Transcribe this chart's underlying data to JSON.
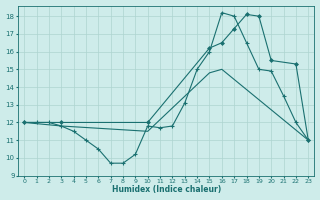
{
  "xlabel": "Humidex (Indice chaleur)",
  "xlim": [
    -0.5,
    23.5
  ],
  "ylim": [
    9,
    18.6
  ],
  "yticks": [
    9,
    10,
    11,
    12,
    13,
    14,
    15,
    16,
    17,
    18
  ],
  "xticks": [
    0,
    1,
    2,
    3,
    4,
    5,
    6,
    7,
    8,
    9,
    10,
    11,
    12,
    13,
    14,
    15,
    16,
    17,
    18,
    19,
    20,
    21,
    22,
    23
  ],
  "bg_color": "#ceecea",
  "grid_color": "#aed4d0",
  "line_color": "#1a7070",
  "line1_x": [
    0,
    1,
    2,
    3,
    4,
    5,
    6,
    7,
    8,
    9,
    10,
    11,
    12,
    13,
    14,
    15,
    16,
    17,
    18,
    19,
    20,
    21,
    22,
    23
  ],
  "line1_y": [
    12,
    12,
    12,
    11.8,
    11.5,
    11.0,
    10.5,
    9.7,
    9.7,
    10.2,
    11.8,
    11.7,
    11.8,
    13.1,
    15.0,
    16.0,
    18.2,
    18.0,
    16.5,
    15.0,
    14.9,
    13.5,
    12.0,
    11.0
  ],
  "line2_x": [
    0,
    3,
    10,
    15,
    16,
    17,
    18,
    19,
    20,
    22,
    23
  ],
  "line2_y": [
    12,
    12,
    12,
    16.2,
    16.5,
    17.3,
    18.1,
    18.0,
    15.5,
    15.3,
    11.0
  ],
  "line3_x": [
    0,
    3,
    10,
    15,
    16,
    23
  ],
  "line3_y": [
    12,
    11.8,
    11.5,
    14.8,
    15.0,
    11.0
  ]
}
